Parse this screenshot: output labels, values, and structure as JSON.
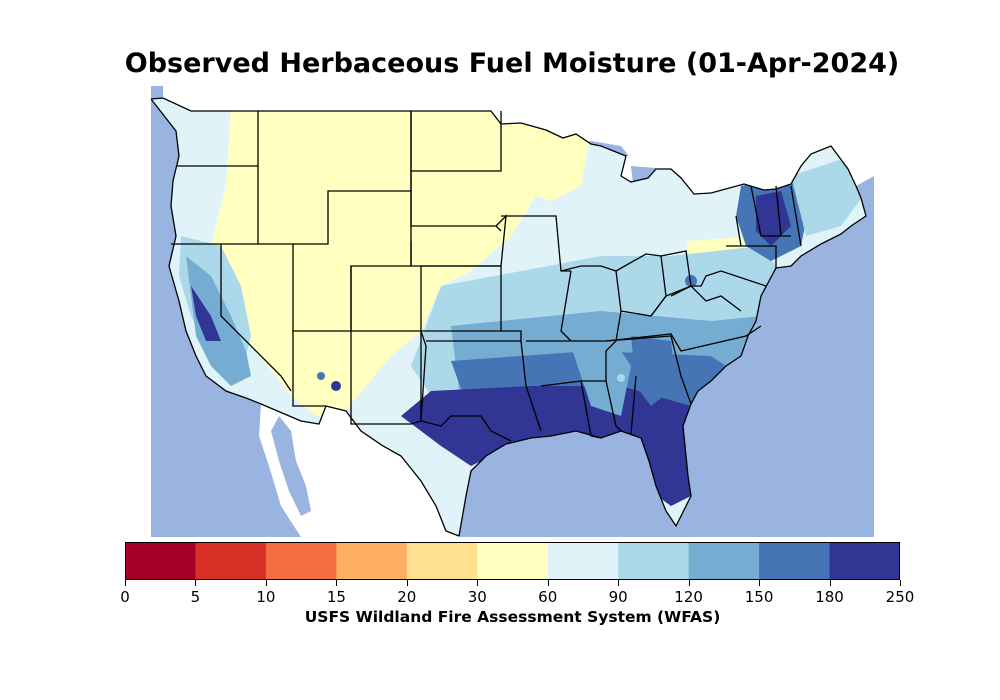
{
  "title": "Observed Herbaceous Fuel Moisture (01-Apr-2024)",
  "colorbar": {
    "label": "USFS Wildland Fire Assessment System (WFAS)",
    "ticks": [
      "0",
      "5",
      "10",
      "15",
      "20",
      "30",
      "60",
      "90",
      "120",
      "150",
      "180",
      "250"
    ],
    "colors": [
      "#a50026",
      "#d73027",
      "#f46d43",
      "#fdae61",
      "#fee090",
      "#ffffbf",
      "#e0f3f8",
      "#abd9e9",
      "#74add1",
      "#4575b4",
      "#313695"
    ]
  },
  "map": {
    "ocean_color": "#99b4e0",
    "land_outside_color": "#ffffff",
    "border_color": "#000000"
  }
}
